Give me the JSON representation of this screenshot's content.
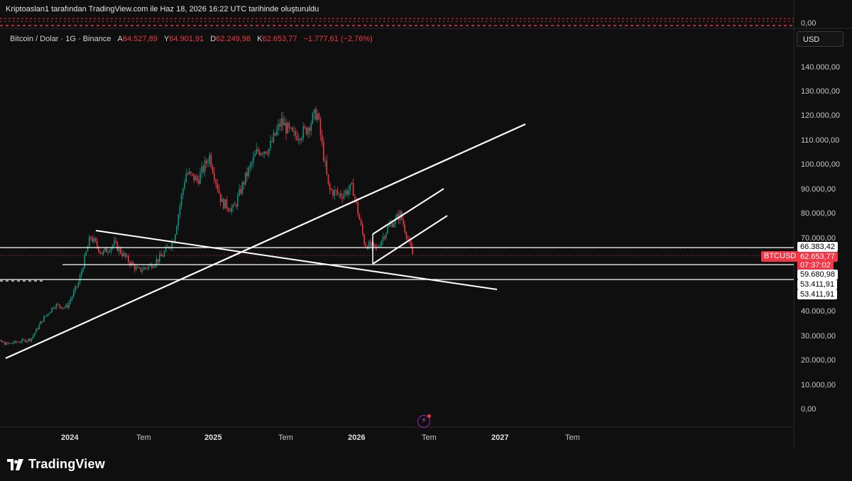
{
  "header": {
    "title": "Kriptoaslan1 tarafından TradingView.com ile Haz 18, 2026 16:22 UTC tarihinde oluşturuldu"
  },
  "symbol": {
    "name": "Bitcoin / Dolar · 1G · Binance",
    "open_key": "A",
    "open": "64.527,89",
    "high_key": "Y",
    "high": "64.901,91",
    "low_key": "D",
    "low": "62.249,98",
    "close_key": "K",
    "close": "62.653,77",
    "change": "−1.777,61 (−2,76%)"
  },
  "currency_button": "USD",
  "volume_axis_value": "0,00",
  "price_axis": [
    "140.000,00",
    "130.000,00",
    "120.000,00",
    "110.000,00",
    "100.000,00",
    "90.000,00",
    "80.000,00",
    "70.000,00",
    "40.000,00",
    "30.000,00",
    "20.000,00",
    "10.000,00",
    "0,00"
  ],
  "price_tags": {
    "level1": "66.383,42",
    "current_price": "62.653,77",
    "countdown": "07:37:02",
    "level2": "59.680,98",
    "level3": "53.411,91",
    "level4": "53.411,91"
  },
  "ticker_label": "BTCUSD",
  "time_axis": [
    "2024",
    "Tem",
    "2025",
    "Tem",
    "2026",
    "Tem",
    "2027",
    "Tem"
  ],
  "brand": "TradingView",
  "colors": {
    "up": "#089981",
    "down": "#f23645",
    "background": "#0f0f0f",
    "lines": "#ffffff"
  },
  "chart_data": {
    "type": "candlestick",
    "title": "Bitcoin / Dolar · 1G · Binance",
    "x_unit": "date",
    "ylim": [
      0,
      140000
    ],
    "y_ticks": [
      0,
      10000,
      20000,
      30000,
      40000,
      70000,
      80000,
      90000,
      100000,
      110000,
      120000,
      130000,
      140000
    ],
    "price_path": [
      [
        "2023-06",
        30000
      ],
      [
        "2023-08",
        27000
      ],
      [
        "2023-10",
        29000
      ],
      [
        "2023-11",
        37000
      ],
      [
        "2023-12",
        43000
      ],
      [
        "2024-01",
        42000
      ],
      [
        "2024-02",
        52000
      ],
      [
        "2024-03",
        71000
      ],
      [
        "2024-04",
        64000
      ],
      [
        "2024-05",
        68000
      ],
      [
        "2024-06",
        62000
      ],
      [
        "2024-07",
        57000
      ],
      [
        "2024-08",
        59000
      ],
      [
        "2024-09",
        63000
      ],
      [
        "2024-10",
        70000
      ],
      [
        "2024-11",
        97000
      ],
      [
        "2024-12",
        94000
      ],
      [
        "2025-01",
        104000
      ],
      [
        "2025-02",
        85000
      ],
      [
        "2025-03",
        82000
      ],
      [
        "2025-04",
        95000
      ],
      [
        "2025-05",
        106000
      ],
      [
        "2025-06",
        107000
      ],
      [
        "2025-07",
        118000
      ],
      [
        "2025-08",
        112000
      ],
      [
        "2025-09",
        114000
      ],
      [
        "2025-10",
        122000
      ],
      [
        "2025-11",
        90000
      ],
      [
        "2025-12",
        88000
      ],
      [
        "2026-01",
        91000
      ],
      [
        "2026-02",
        68000
      ],
      [
        "2026-03",
        66000
      ],
      [
        "2026-04",
        75000
      ],
      [
        "2026-05",
        80000
      ],
      [
        "2026-06",
        64000
      ],
      [
        "2026-06-18",
        62654
      ]
    ],
    "horizontal_levels": [
      66383.42,
      59680.98,
      53411.91
    ]
  }
}
